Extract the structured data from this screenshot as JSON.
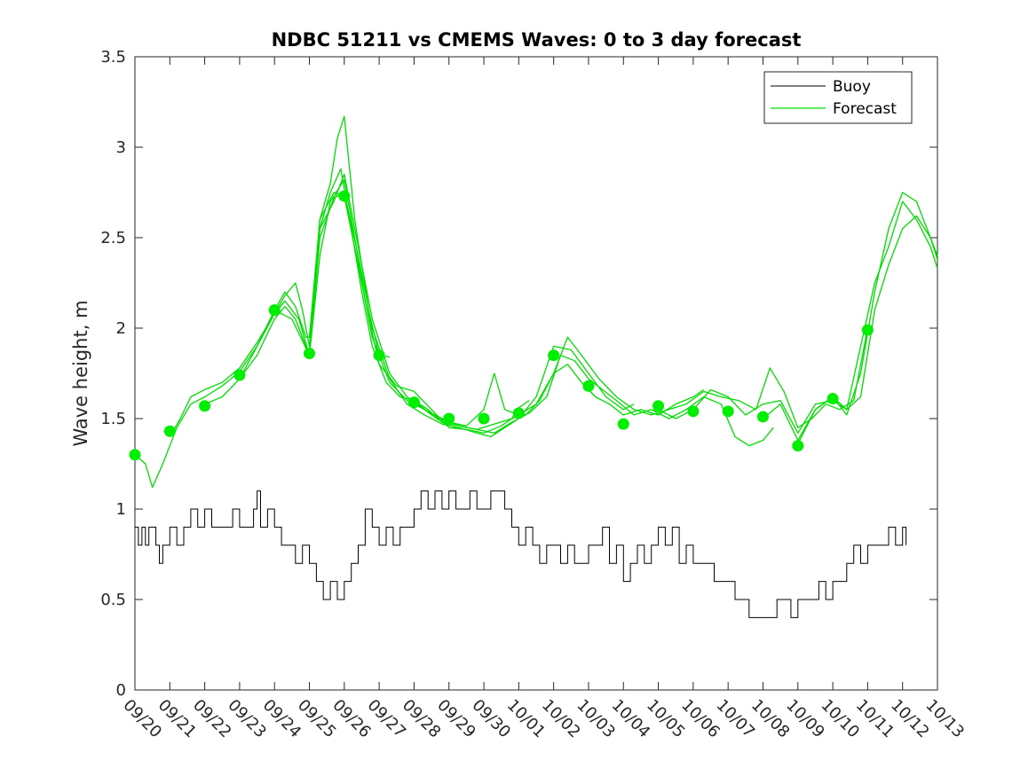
{
  "chart_data": {
    "type": "line",
    "title": "NDBC 51211 vs CMEMS Waves: 0 to 3 day forecast",
    "xlabel": "",
    "ylabel": "Wave height, m",
    "x_range_days": [
      0,
      23
    ],
    "ylim": [
      0,
      3.5
    ],
    "y_ticks": [
      0,
      0.5,
      1,
      1.5,
      2,
      2.5,
      3,
      3.5
    ],
    "y_tick_labels": [
      "0",
      "0.5",
      "1",
      "1.5",
      "2",
      "2.5",
      "3",
      "3.5"
    ],
    "x_tick_labels": [
      "09/20",
      "09/21",
      "09/22",
      "09/23",
      "09/24",
      "09/25",
      "09/26",
      "09/27",
      "09/28",
      "09/29",
      "09/30",
      "10/01",
      "10/02",
      "10/03",
      "10/04",
      "10/05",
      "10/06",
      "10/07",
      "10/08",
      "10/09",
      "10/10",
      "10/11",
      "10/12",
      "10/13"
    ],
    "legend": {
      "position": "top-right",
      "entries": [
        "Buoy",
        "Forecast"
      ]
    },
    "colors": {
      "buoy": "#000000",
      "forecast": "#00dd00",
      "marker": "#00ee00"
    },
    "series": [
      {
        "name": "Buoy",
        "x": [
          0,
          0.1,
          0.2,
          0.3,
          0.4,
          0.5,
          0.6,
          0.7,
          0.8,
          1.0,
          1.2,
          1.4,
          1.6,
          1.8,
          2.0,
          2.2,
          2.4,
          2.6,
          2.8,
          3.0,
          3.2,
          3.4,
          3.5,
          3.6,
          3.8,
          4.0,
          4.2,
          4.4,
          4.6,
          4.8,
          5.0,
          5.2,
          5.4,
          5.6,
          5.8,
          6.0,
          6.2,
          6.4,
          6.6,
          6.8,
          7.0,
          7.2,
          7.4,
          7.6,
          7.8,
          8.0,
          8.2,
          8.4,
          8.6,
          8.8,
          9.0,
          9.2,
          9.4,
          9.6,
          9.8,
          10.0,
          10.2,
          10.4,
          10.6,
          10.8,
          11.0,
          11.2,
          11.4,
          11.6,
          11.8,
          12.0,
          12.2,
          12.4,
          12.6,
          12.8,
          13.0,
          13.2,
          13.4,
          13.6,
          13.8,
          14.0,
          14.2,
          14.4,
          14.6,
          14.8,
          15.0,
          15.2,
          15.4,
          15.6,
          15.8,
          16.0,
          16.2,
          16.4,
          16.6,
          16.8,
          17.0,
          17.2,
          17.4,
          17.6,
          17.8,
          18.0,
          18.2,
          18.4,
          18.6,
          18.8,
          19.0,
          19.2,
          19.4,
          19.6,
          19.8,
          20.0,
          20.2,
          20.4,
          20.6,
          20.8,
          21.0,
          21.2,
          21.4,
          21.6,
          21.8,
          22.0,
          22.1
        ],
        "values": [
          0.9,
          0.8,
          0.9,
          0.8,
          0.9,
          0.9,
          0.8,
          0.7,
          0.8,
          0.9,
          0.8,
          0.9,
          1.0,
          0.9,
          1.0,
          0.9,
          0.9,
          0.9,
          1.0,
          0.9,
          0.9,
          1.0,
          1.1,
          0.9,
          1.0,
          0.9,
          0.8,
          0.8,
          0.7,
          0.8,
          0.7,
          0.6,
          0.5,
          0.6,
          0.5,
          0.6,
          0.7,
          0.8,
          1.0,
          0.9,
          0.8,
          0.9,
          0.8,
          0.9,
          0.9,
          1.0,
          1.1,
          1.0,
          1.1,
          1.0,
          1.1,
          1.0,
          1.0,
          1.1,
          1.0,
          1.0,
          1.1,
          1.1,
          1.0,
          0.9,
          0.8,
          0.9,
          0.8,
          0.7,
          0.8,
          0.8,
          0.7,
          0.8,
          0.7,
          0.7,
          0.8,
          0.8,
          0.9,
          0.7,
          0.8,
          0.6,
          0.7,
          0.8,
          0.7,
          0.8,
          0.9,
          0.8,
          0.9,
          0.7,
          0.8,
          0.7,
          0.7,
          0.7,
          0.6,
          0.6,
          0.6,
          0.5,
          0.5,
          0.4,
          0.4,
          0.4,
          0.4,
          0.5,
          0.5,
          0.4,
          0.5,
          0.5,
          0.5,
          0.6,
          0.5,
          0.6,
          0.6,
          0.7,
          0.8,
          0.7,
          0.8,
          0.8,
          0.8,
          0.9,
          0.8,
          0.9,
          0.8
        ]
      },
      {
        "name": "Forecast",
        "runs": [
          {
            "x": [
              0,
              0.3,
              0.5,
              0.8,
              1.2,
              1.6,
              2.0,
              2.5,
              3.0,
              3.5,
              4.0,
              4.3,
              4.6,
              4.9,
              5.0,
              5.3,
              5.6,
              5.8,
              6.0,
              6.3,
              6.7,
              7.0,
              7.3
            ],
            "values": [
              1.3,
              1.25,
              1.12,
              1.25,
              1.45,
              1.58,
              1.62,
              1.68,
              1.76,
              1.9,
              2.1,
              2.2,
              2.12,
              1.95,
              1.95,
              2.6,
              2.8,
              3.05,
              3.17,
              2.6,
              2.1,
              1.85,
              1.84
            ]
          },
          {
            "x": [
              1.0,
              1.3,
              1.6,
              2.0,
              2.5,
              3.0,
              3.5,
              4.0,
              4.3,
              4.6,
              4.8,
              5.0,
              5.3,
              5.6,
              5.9,
              6.2,
              6.5,
              6.8,
              7.2,
              7.6,
              8.0,
              8.4,
              8.8,
              9.2
            ],
            "values": [
              1.4,
              1.5,
              1.62,
              1.66,
              1.7,
              1.78,
              1.92,
              2.08,
              2.18,
              2.25,
              2.1,
              1.9,
              2.55,
              2.75,
              2.88,
              2.55,
              2.2,
              1.9,
              1.7,
              1.62,
              1.6,
              1.55,
              1.48,
              1.45
            ]
          },
          {
            "x": [
              2.0,
              2.5,
              3.0,
              3.5,
              4.0,
              4.3,
              4.6,
              5.0,
              5.3,
              5.6,
              6.0,
              6.3,
              6.6,
              7.0,
              7.5,
              8.0,
              8.5,
              9.0,
              9.5,
              10.0,
              10.5,
              10.8,
              11.0,
              11.3
            ],
            "values": [
              1.58,
              1.62,
              1.72,
              1.85,
              2.05,
              2.12,
              2.05,
              1.85,
              2.4,
              2.7,
              2.82,
              2.5,
              2.15,
              1.8,
              1.68,
              1.65,
              1.55,
              1.45,
              1.44,
              1.42,
              1.46,
              1.5,
              1.56,
              1.6
            ]
          },
          {
            "x": [
              3.0,
              3.5,
              4.0,
              4.3,
              4.7,
              5.0,
              5.3,
              5.7,
              6.0,
              6.4,
              6.8,
              7.3,
              7.8,
              8.3,
              8.8,
              9.3,
              9.8,
              10.2,
              10.6,
              11.0,
              11.5,
              12.0,
              12.5,
              13.0,
              13.5,
              14.0,
              14.3
            ],
            "values": [
              1.72,
              1.9,
              2.08,
              2.15,
              2.05,
              1.85,
              2.5,
              2.72,
              2.75,
              2.4,
              2.0,
              1.72,
              1.58,
              1.52,
              1.47,
              1.45,
              1.42,
              1.4,
              1.45,
              1.5,
              1.62,
              1.9,
              1.88,
              1.75,
              1.62,
              1.55,
              1.58
            ]
          },
          {
            "x": [
              4.0,
              4.5,
              5.0,
              5.3,
              5.7,
              6.0,
              6.4,
              6.8,
              7.3,
              7.8,
              8.3,
              8.8,
              9.3,
              9.8,
              10.3,
              10.8,
              11.2,
              11.6,
              12.0,
              12.4,
              12.8,
              13.2,
              13.6,
              14.0,
              14.5,
              15.0,
              15.5,
              16.0,
              16.3
            ],
            "values": [
              2.1,
              2.05,
              1.85,
              2.55,
              2.7,
              2.85,
              2.45,
              2.05,
              1.75,
              1.62,
              1.55,
              1.48,
              1.46,
              1.44,
              1.42,
              1.48,
              1.52,
              1.6,
              1.75,
              1.8,
              1.7,
              1.62,
              1.58,
              1.52,
              1.55,
              1.52,
              1.58,
              1.62,
              1.66
            ]
          },
          {
            "x": [
              5.0,
              5.3,
              5.7,
              6.0,
              6.4,
              6.8,
              7.3,
              7.8,
              8.3,
              8.8,
              9.3,
              9.8,
              10.3,
              10.8,
              11.3,
              11.8,
              12.2,
              12.6,
              13.0,
              13.4,
              13.8,
              14.3,
              14.8,
              15.3,
              15.8,
              16.3,
              16.8,
              17.2,
              17.6,
              18.0,
              18.3
            ],
            "values": [
              1.86,
              2.6,
              2.75,
              2.73,
              2.35,
              1.95,
              1.7,
              1.6,
              1.55,
              1.5,
              1.46,
              1.44,
              1.47,
              1.5,
              1.53,
              1.62,
              1.85,
              1.82,
              1.72,
              1.66,
              1.6,
              1.52,
              1.55,
              1.5,
              1.55,
              1.62,
              1.58,
              1.4,
              1.35,
              1.38,
              1.45
            ]
          },
          {
            "x": [
              8.0,
              8.5,
              9.0,
              9.5,
              10.0,
              10.3,
              10.6,
              11.0,
              11.5,
              12.0,
              12.4,
              12.8,
              13.3,
              13.8,
              14.3,
              14.8,
              15.3,
              15.8,
              16.3,
              16.8,
              17.3,
              17.8,
              18.2,
              18.6,
              19.0,
              19.4,
              19.8,
              20.2,
              20.6,
              21.0
            ],
            "values": [
              1.6,
              1.52,
              1.48,
              1.46,
              1.55,
              1.75,
              1.55,
              1.52,
              1.58,
              1.75,
              1.95,
              1.85,
              1.72,
              1.62,
              1.55,
              1.52,
              1.55,
              1.58,
              1.65,
              1.62,
              1.6,
              1.55,
              1.78,
              1.65,
              1.45,
              1.5,
              1.58,
              1.55,
              1.6,
              2.0
            ]
          },
          {
            "x": [
              15.0,
              15.5,
              16.0,
              16.5,
              17.0,
              17.5,
              18.0,
              18.5,
              19.0,
              19.5,
              20.0,
              20.4,
              20.8,
              21.2,
              21.6,
              22.0,
              22.4,
              22.8,
              23.0
            ],
            "values": [
              1.55,
              1.5,
              1.55,
              1.66,
              1.62,
              1.52,
              1.58,
              1.6,
              1.42,
              1.58,
              1.6,
              1.55,
              1.62,
              2.1,
              2.35,
              2.55,
              2.62,
              2.5,
              2.4
            ]
          },
          {
            "x": [
              18.0,
              18.5,
              19.0,
              19.5,
              20.0,
              20.4,
              20.8,
              21.2,
              21.6,
              22.0,
              22.4,
              22.8,
              23.0
            ],
            "values": [
              1.5,
              1.58,
              1.38,
              1.55,
              1.62,
              1.52,
              1.75,
              2.2,
              2.55,
              2.75,
              2.7,
              2.5,
              2.38
            ]
          },
          {
            "x": [
              19.0,
              19.5,
              20.0,
              20.4,
              20.8,
              21.2,
              21.6,
              22.0,
              22.4,
              22.8,
              23.0
            ],
            "values": [
              1.36,
              1.55,
              1.62,
              1.55,
              1.9,
              2.25,
              2.45,
              2.7,
              2.6,
              2.45,
              2.33
            ]
          }
        ]
      },
      {
        "name": "Forecast markers",
        "x": [
          0,
          1,
          2,
          3,
          4,
          5,
          6,
          7,
          8,
          9,
          10,
          11,
          12,
          13,
          14,
          15,
          16,
          17,
          18,
          19,
          20,
          21
        ],
        "values": [
          1.3,
          1.43,
          1.57,
          1.74,
          2.1,
          1.86,
          2.73,
          1.85,
          1.59,
          1.5,
          1.5,
          1.53,
          1.85,
          1.68,
          1.47,
          1.57,
          1.54,
          1.54,
          1.51,
          1.35,
          1.61,
          1.99
        ]
      }
    ]
  }
}
